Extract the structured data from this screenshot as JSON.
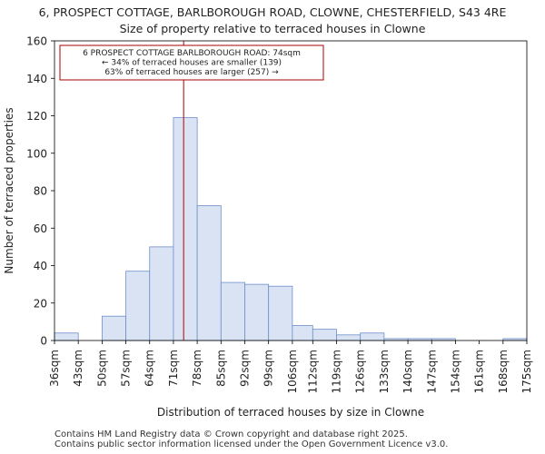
{
  "chart_data": {
    "type": "bar",
    "title": "6, PROSPECT COTTAGE, BARLBOROUGH ROAD, CLOWNE, CHESTERFIELD, S43 4RE",
    "subtitle": "Size of property relative to terraced houses in Clowne",
    "xlabel": "Distribution of terraced houses by size in Clowne",
    "ylabel": "Number of terraced properties",
    "ylim": [
      0,
      160
    ],
    "yticks": [
      0,
      20,
      40,
      60,
      80,
      100,
      120,
      140,
      160
    ],
    "bin_edges": [
      36,
      43,
      50,
      57,
      64,
      71,
      78,
      85,
      92,
      99,
      106,
      112,
      119,
      126,
      133,
      140,
      147,
      154,
      161,
      168,
      175
    ],
    "x_tick_labels": [
      "36sqm",
      "43sqm",
      "50sqm",
      "57sqm",
      "64sqm",
      "71sqm",
      "78sqm",
      "85sqm",
      "92sqm",
      "99sqm",
      "106sqm",
      "112sqm",
      "119sqm",
      "126sqm",
      "133sqm",
      "140sqm",
      "147sqm",
      "154sqm",
      "161sqm",
      "168sqm",
      "175sqm"
    ],
    "values": [
      4,
      0,
      13,
      37,
      50,
      119,
      72,
      31,
      30,
      29,
      8,
      6,
      3,
      4,
      1,
      1,
      1,
      0,
      0,
      1
    ],
    "marker_value": 74,
    "annotation": [
      "6 PROSPECT COTTAGE BARLBOROUGH ROAD: 74sqm",
      "← 34% of terraced houses are smaller (139)",
      "63% of terraced houses are larger (257) →"
    ],
    "colors": {
      "bar_fill": "#dae3f3",
      "bar_edge": "#6d8fc9",
      "marker": "#aa0000",
      "annotation_border": "#aa0000"
    }
  },
  "footer": {
    "line1": "Contains HM Land Registry data © Crown copyright and database right 2025.",
    "line2": "Contains public sector information licensed under the Open Government Licence v3.0."
  }
}
